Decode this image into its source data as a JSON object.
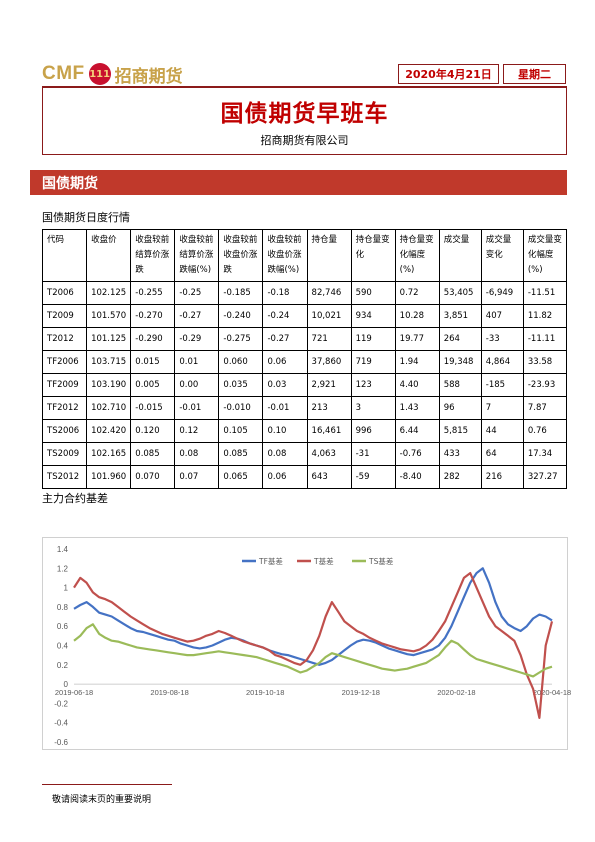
{
  "header": {
    "logo_text": "CMF",
    "logo_badge": "111",
    "logo_cn": "招商期货",
    "date": "2020年4月21日",
    "weekday": "星期二"
  },
  "report": {
    "title": "国债期货早班车",
    "company": "招商期货有限公司"
  },
  "section": {
    "title": "国债期货"
  },
  "table": {
    "title": "国债期货日度行情",
    "columns": [
      "代码",
      "收盘价",
      "收盘较前结算价涨跌",
      "收盘较前结算价涨跌幅(%)",
      "收盘较前收盘价涨跌",
      "收盘较前收盘价涨跌幅(%)",
      "持仓量",
      "持仓量变化",
      "持仓量变化幅度(%)",
      "成交量",
      "成交量变化",
      "成交量变化幅度(%)"
    ],
    "rows": [
      [
        "T2006",
        "102.125",
        "-0.255",
        "-0.25",
        "-0.185",
        "-0.18",
        "82,746",
        "590",
        "0.72",
        "53,405",
        "-6,949",
        "-11.51"
      ],
      [
        "T2009",
        "101.570",
        "-0.270",
        "-0.27",
        "-0.240",
        "-0.24",
        "10,021",
        "934",
        "10.28",
        "3,851",
        "407",
        "11.82"
      ],
      [
        "T2012",
        "101.125",
        "-0.290",
        "-0.29",
        "-0.275",
        "-0.27",
        "721",
        "119",
        "19.77",
        "264",
        "-33",
        "-11.11"
      ],
      [
        "TF2006",
        "103.715",
        "0.015",
        "0.01",
        "0.060",
        "0.06",
        "37,860",
        "719",
        "1.94",
        "19,348",
        "4,864",
        "33.58"
      ],
      [
        "TF2009",
        "103.190",
        "0.005",
        "0.00",
        "0.035",
        "0.03",
        "2,921",
        "123",
        "4.40",
        "588",
        "-185",
        "-23.93"
      ],
      [
        "TF2012",
        "102.710",
        "-0.015",
        "-0.01",
        "-0.010",
        "-0.01",
        "213",
        "3",
        "1.43",
        "96",
        "7",
        "7.87"
      ],
      [
        "TS2006",
        "102.420",
        "0.120",
        "0.12",
        "0.105",
        "0.10",
        "16,461",
        "996",
        "6.44",
        "5,815",
        "44",
        "0.76"
      ],
      [
        "TS2009",
        "102.165",
        "0.085",
        "0.08",
        "0.085",
        "0.08",
        "4,063",
        "-31",
        "-0.76",
        "433",
        "64",
        "17.34"
      ],
      [
        "TS2012",
        "101.960",
        "0.070",
        "0.07",
        "0.065",
        "0.06",
        "643",
        "-59",
        "-8.40",
        "282",
        "216",
        "327.27"
      ]
    ]
  },
  "chart_section": {
    "title": "主力合约基差"
  },
  "chart_data": {
    "type": "line",
    "ylim": [
      -0.6,
      1.4
    ],
    "yticks": [
      "1.4",
      "1.2",
      "1",
      "0.8",
      "0.6",
      "0.4",
      "0.2",
      "0",
      "-0.2",
      "-0.4",
      "-0.6"
    ],
    "xticks": [
      "2019-06-18",
      "2019-08-18",
      "2019-10-18",
      "2019-12-18",
      "2020-02-18",
      "2020-04-18"
    ],
    "legend_position": "top-center",
    "grid": false,
    "series": [
      {
        "name": "TF基差",
        "color": "#4472c4",
        "values": [
          0.78,
          0.82,
          0.85,
          0.8,
          0.74,
          0.72,
          0.7,
          0.66,
          0.62,
          0.58,
          0.55,
          0.54,
          0.52,
          0.5,
          0.48,
          0.46,
          0.45,
          0.42,
          0.4,
          0.38,
          0.37,
          0.38,
          0.4,
          0.43,
          0.46,
          0.48,
          0.47,
          0.45,
          0.42,
          0.4,
          0.38,
          0.35,
          0.33,
          0.31,
          0.3,
          0.28,
          0.26,
          0.24,
          0.22,
          0.2,
          0.22,
          0.25,
          0.3,
          0.35,
          0.4,
          0.44,
          0.46,
          0.45,
          0.43,
          0.4,
          0.37,
          0.35,
          0.33,
          0.31,
          0.3,
          0.32,
          0.34,
          0.36,
          0.4,
          0.48,
          0.6,
          0.75,
          0.9,
          1.05,
          1.15,
          1.2,
          1.05,
          0.85,
          0.7,
          0.62,
          0.58,
          0.55,
          0.6,
          0.68,
          0.72,
          0.7,
          0.66
        ]
      },
      {
        "name": "T基差",
        "color": "#c0504d",
        "values": [
          1.0,
          1.1,
          1.05,
          0.95,
          0.9,
          0.88,
          0.85,
          0.8,
          0.75,
          0.7,
          0.66,
          0.62,
          0.58,
          0.55,
          0.52,
          0.5,
          0.48,
          0.46,
          0.44,
          0.45,
          0.47,
          0.5,
          0.52,
          0.55,
          0.53,
          0.5,
          0.47,
          0.44,
          0.42,
          0.4,
          0.38,
          0.35,
          0.3,
          0.28,
          0.25,
          0.22,
          0.2,
          0.25,
          0.35,
          0.5,
          0.7,
          0.85,
          0.75,
          0.65,
          0.6,
          0.55,
          0.52,
          0.48,
          0.45,
          0.42,
          0.4,
          0.38,
          0.36,
          0.35,
          0.34,
          0.36,
          0.4,
          0.46,
          0.55,
          0.65,
          0.8,
          0.95,
          1.1,
          1.15,
          1.0,
          0.85,
          0.7,
          0.6,
          0.55,
          0.5,
          0.45,
          0.3,
          0.1,
          -0.05,
          -0.35,
          0.4,
          0.65
        ]
      },
      {
        "name": "TS基差",
        "color": "#9bbb59",
        "values": [
          0.45,
          0.5,
          0.58,
          0.62,
          0.52,
          0.48,
          0.45,
          0.44,
          0.42,
          0.4,
          0.38,
          0.37,
          0.36,
          0.35,
          0.34,
          0.33,
          0.32,
          0.31,
          0.3,
          0.3,
          0.31,
          0.32,
          0.33,
          0.34,
          0.33,
          0.32,
          0.31,
          0.3,
          0.29,
          0.28,
          0.26,
          0.24,
          0.22,
          0.2,
          0.18,
          0.15,
          0.12,
          0.14,
          0.18,
          0.22,
          0.28,
          0.32,
          0.3,
          0.28,
          0.26,
          0.24,
          0.22,
          0.2,
          0.18,
          0.16,
          0.15,
          0.14,
          0.15,
          0.16,
          0.18,
          0.2,
          0.22,
          0.26,
          0.3,
          0.38,
          0.45,
          0.42,
          0.36,
          0.3,
          0.26,
          0.24,
          0.22,
          0.2,
          0.18,
          0.16,
          0.14,
          0.12,
          0.1,
          0.08,
          0.12,
          0.16,
          0.18
        ]
      }
    ]
  },
  "footer": {
    "note": "敬请阅读末页的重要说明"
  }
}
